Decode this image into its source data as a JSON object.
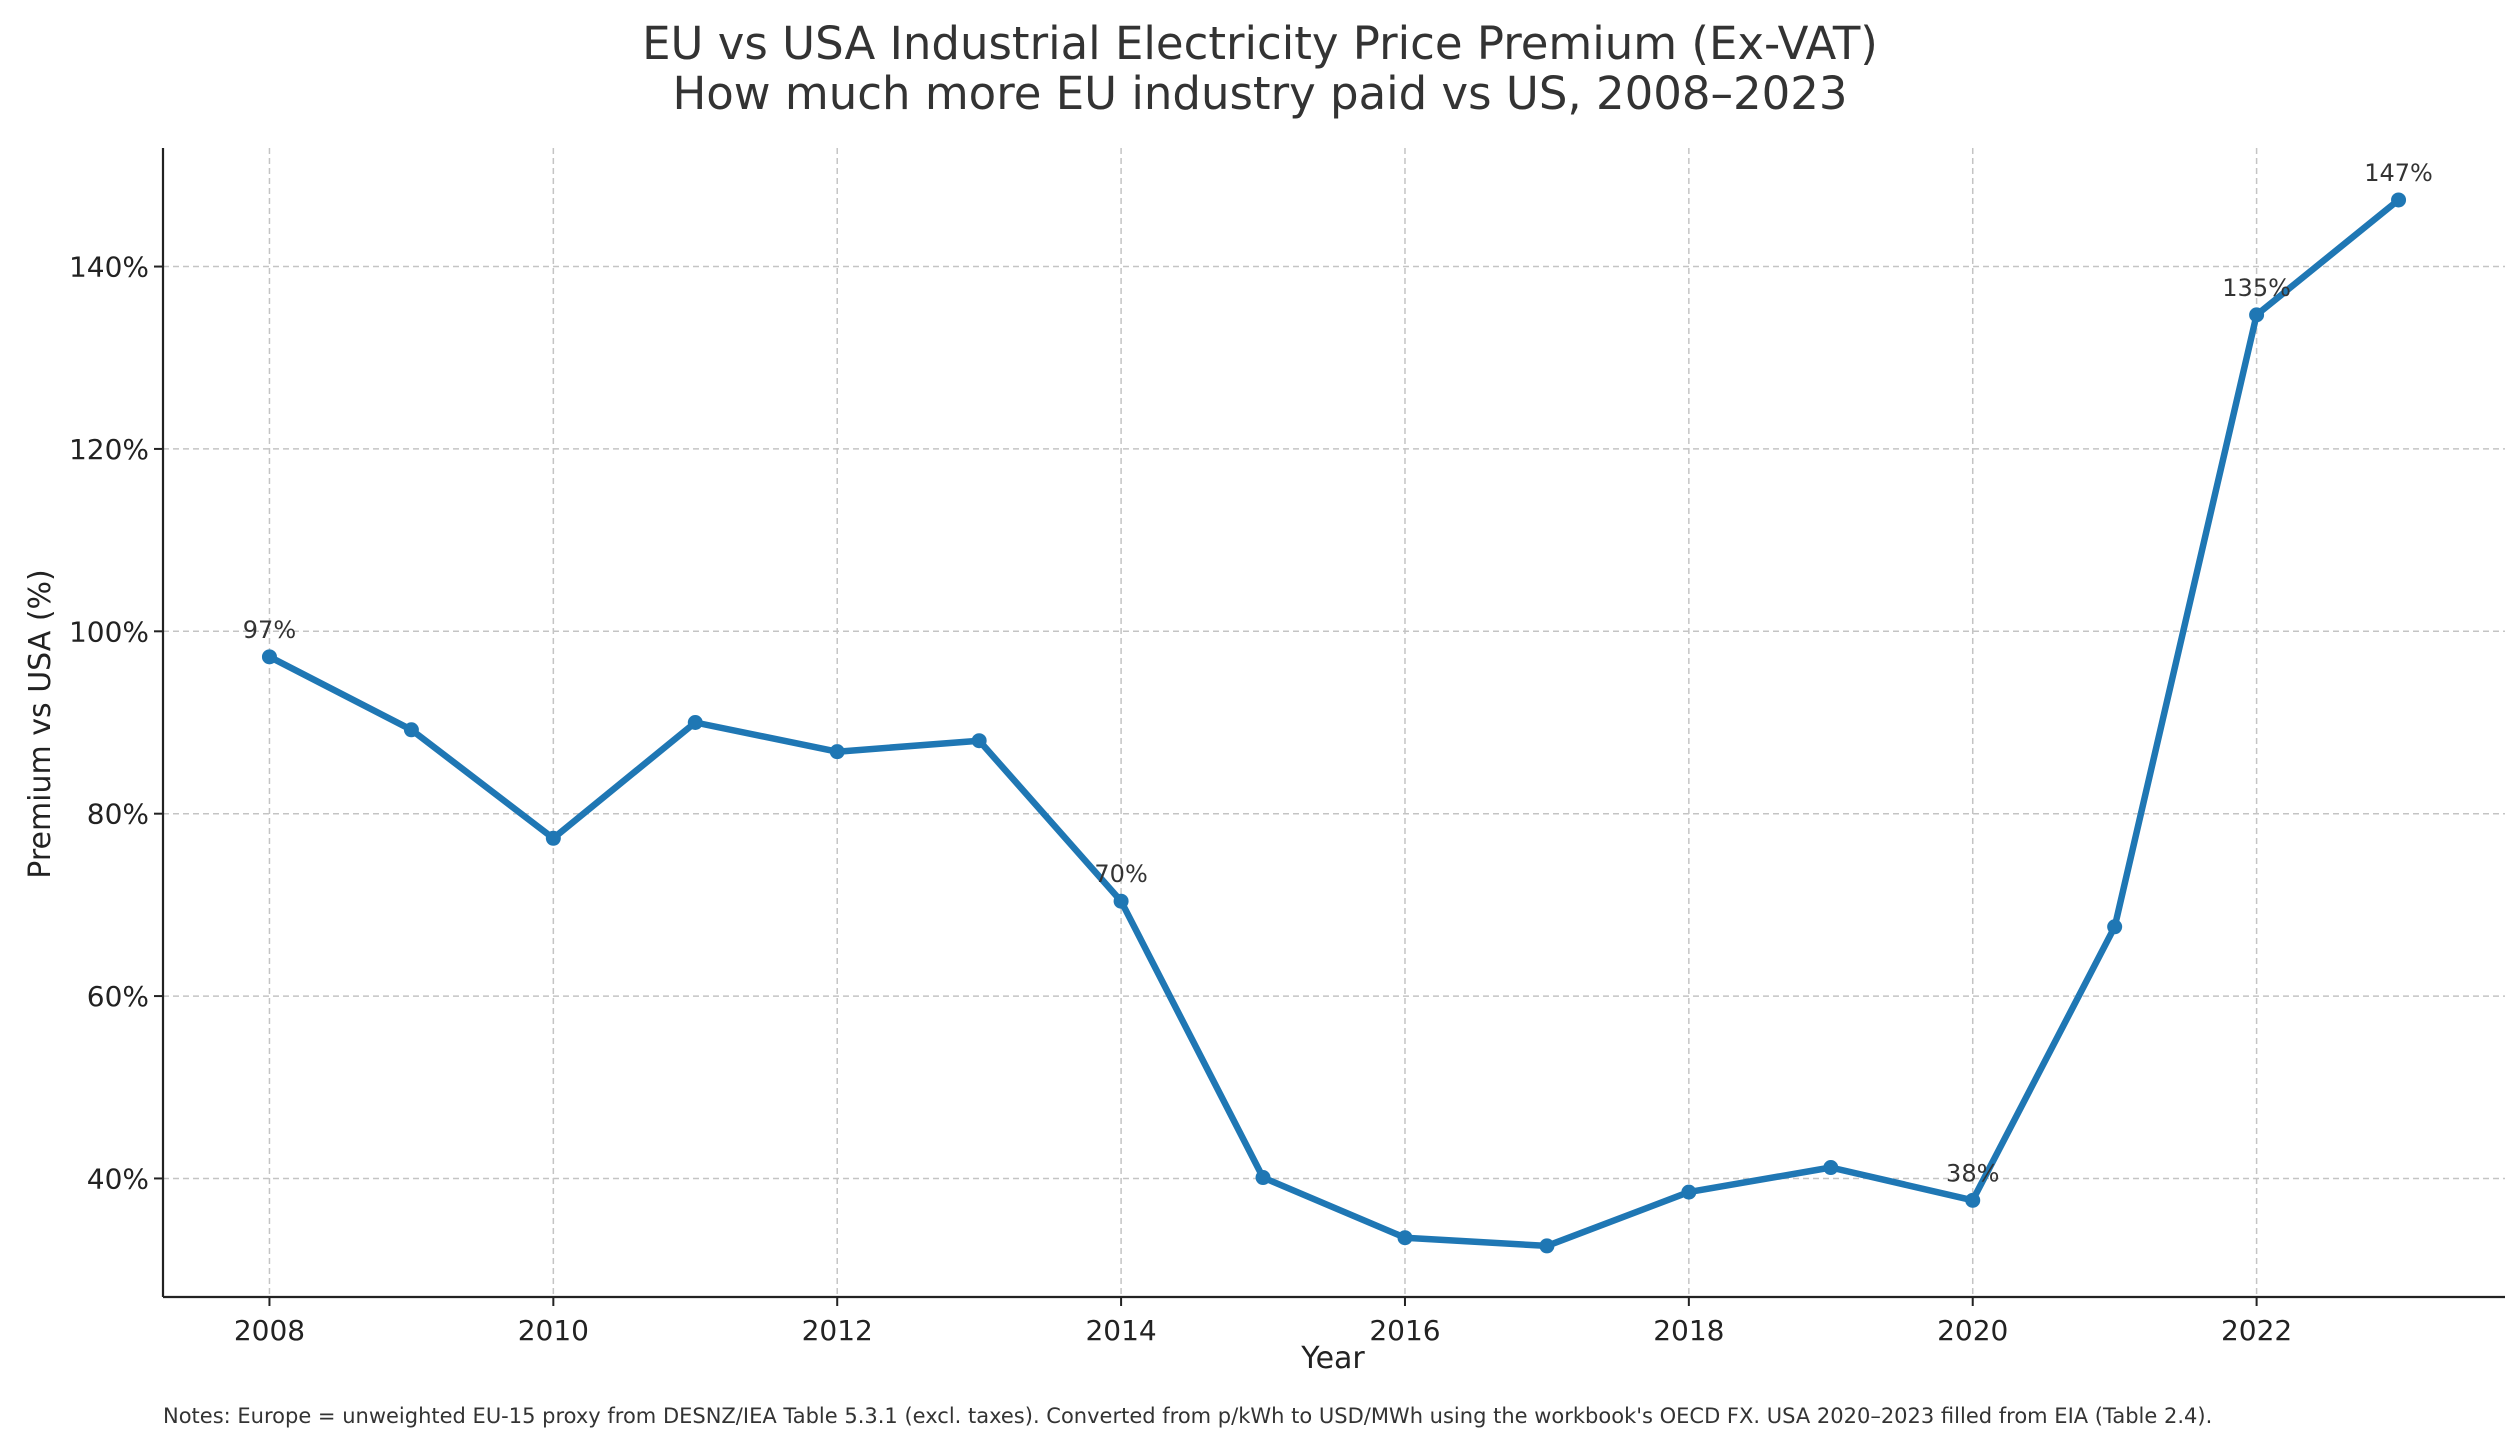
{
  "chart_data": {
    "type": "line",
    "title": "EU vs USA Industrial Electricity Price Premium (Ex-VAT)",
    "subtitle": "How much more EU industry paid vs US, 2008–2023",
    "xlabel": "Year",
    "ylabel": "Premium vs USA (%)",
    "x": [
      2008,
      2009,
      2010,
      2011,
      2012,
      2013,
      2014,
      2015,
      2016,
      2017,
      2018,
      2019,
      2020,
      2021,
      2022,
      2023
    ],
    "series": [
      {
        "values": [
          97.2,
          89.2,
          77.3,
          90.0,
          86.8,
          88.0,
          70.4,
          40.1,
          33.5,
          32.6,
          38.5,
          41.2,
          37.6,
          67.6,
          134.7,
          147.3
        ],
        "color": "#1f77b4"
      }
    ],
    "annotations": [
      {
        "x": 2008,
        "y": 97.2,
        "text": "97%"
      },
      {
        "x": 2014,
        "y": 70.4,
        "text": "70%"
      },
      {
        "x": 2020,
        "y": 37.6,
        "text": "38%"
      },
      {
        "x": 2022,
        "y": 134.7,
        "text": "135%"
      },
      {
        "x": 2023,
        "y": 147.3,
        "text": "147%"
      }
    ],
    "xlim": [
      2007.25,
      2023.75
    ],
    "ylim": [
      27,
      153
    ],
    "xticks": [
      2008,
      2010,
      2012,
      2014,
      2016,
      2018,
      2020,
      2022
    ],
    "yticks": [
      40,
      60,
      80,
      100,
      120,
      140
    ],
    "ytick_labels": [
      "40%",
      "60%",
      "80%",
      "100%",
      "120%",
      "140%"
    ],
    "grid": true,
    "notes": "Notes: Europe = unweighted EU-15 proxy from DESNZ/IEA Table 5.3.1 (excl. taxes). Converted from p/kWh to USD/MWh using the workbook's OECD FX. USA 2020–2023 filled from EIA (Table 2.4)."
  }
}
